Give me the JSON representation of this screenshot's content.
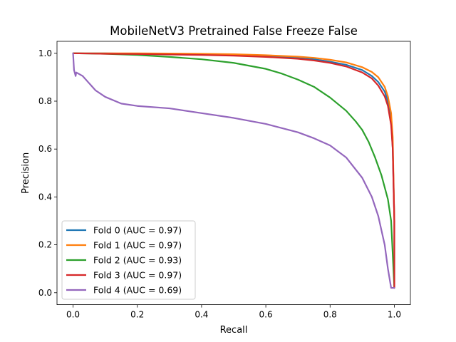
{
  "chart_data": {
    "type": "line",
    "title": "MobileNetV3 Pretrained False Freeze False",
    "xlabel": "Recall",
    "ylabel": "Precision",
    "xlim": [
      -0.05,
      1.05
    ],
    "ylim": [
      -0.05,
      1.05
    ],
    "xticks": [
      "0.0",
      "0.2",
      "0.4",
      "0.6",
      "0.8",
      "1.0"
    ],
    "yticks": [
      "0.0",
      "0.2",
      "0.4",
      "0.6",
      "0.8",
      "1.0"
    ],
    "grid": false,
    "legend_position": "lower-left",
    "series": [
      {
        "name": "Fold 0 (AUC = 0.97)",
        "color": "#1f77b4",
        "points": [
          [
            0.0,
            1.0
          ],
          [
            0.1,
            1.0
          ],
          [
            0.2,
            0.998
          ],
          [
            0.3,
            0.997
          ],
          [
            0.4,
            0.995
          ],
          [
            0.5,
            0.992
          ],
          [
            0.6,
            0.988
          ],
          [
            0.7,
            0.98
          ],
          [
            0.75,
            0.975
          ],
          [
            0.8,
            0.965
          ],
          [
            0.85,
            0.952
          ],
          [
            0.9,
            0.93
          ],
          [
            0.93,
            0.905
          ],
          [
            0.95,
            0.88
          ],
          [
            0.97,
            0.84
          ],
          [
            0.98,
            0.8
          ],
          [
            0.99,
            0.72
          ],
          [
            0.995,
            0.6
          ],
          [
            1.0,
            0.3
          ],
          [
            1.0,
            0.02
          ]
        ]
      },
      {
        "name": "Fold 1 (AUC = 0.97)",
        "color": "#ff7f0e",
        "points": [
          [
            0.0,
            1.0
          ],
          [
            0.1,
            1.0
          ],
          [
            0.2,
            1.0
          ],
          [
            0.3,
            0.999
          ],
          [
            0.4,
            0.998
          ],
          [
            0.5,
            0.996
          ],
          [
            0.6,
            0.992
          ],
          [
            0.7,
            0.986
          ],
          [
            0.75,
            0.981
          ],
          [
            0.8,
            0.973
          ],
          [
            0.85,
            0.962
          ],
          [
            0.9,
            0.942
          ],
          [
            0.93,
            0.922
          ],
          [
            0.95,
            0.9
          ],
          [
            0.97,
            0.86
          ],
          [
            0.98,
            0.82
          ],
          [
            0.99,
            0.75
          ],
          [
            0.995,
            0.65
          ],
          [
            1.0,
            0.3
          ],
          [
            1.0,
            0.02
          ]
        ]
      },
      {
        "name": "Fold 2 (AUC = 0.93)",
        "color": "#2ca02c",
        "points": [
          [
            0.0,
            1.0
          ],
          [
            0.1,
            0.998
          ],
          [
            0.2,
            0.993
          ],
          [
            0.3,
            0.985
          ],
          [
            0.4,
            0.975
          ],
          [
            0.5,
            0.96
          ],
          [
            0.6,
            0.935
          ],
          [
            0.65,
            0.915
          ],
          [
            0.7,
            0.89
          ],
          [
            0.75,
            0.86
          ],
          [
            0.8,
            0.815
          ],
          [
            0.85,
            0.76
          ],
          [
            0.88,
            0.715
          ],
          [
            0.9,
            0.68
          ],
          [
            0.92,
            0.63
          ],
          [
            0.94,
            0.565
          ],
          [
            0.96,
            0.49
          ],
          [
            0.98,
            0.39
          ],
          [
            0.99,
            0.3
          ],
          [
            1.0,
            0.02
          ]
        ]
      },
      {
        "name": "Fold 3 (AUC = 0.97)",
        "color": "#d62728",
        "points": [
          [
            0.0,
            1.0
          ],
          [
            0.1,
            0.998
          ],
          [
            0.2,
            0.997
          ],
          [
            0.3,
            0.995
          ],
          [
            0.4,
            0.993
          ],
          [
            0.5,
            0.99
          ],
          [
            0.6,
            0.985
          ],
          [
            0.7,
            0.977
          ],
          [
            0.75,
            0.97
          ],
          [
            0.8,
            0.96
          ],
          [
            0.85,
            0.945
          ],
          [
            0.9,
            0.92
          ],
          [
            0.93,
            0.895
          ],
          [
            0.95,
            0.865
          ],
          [
            0.97,
            0.82
          ],
          [
            0.98,
            0.78
          ],
          [
            0.99,
            0.7
          ],
          [
            0.995,
            0.6
          ],
          [
            1.0,
            0.3
          ],
          [
            1.0,
            0.02
          ]
        ]
      },
      {
        "name": "Fold 4 (AUC = 0.69)",
        "color": "#9467bd",
        "points": [
          [
            0.0,
            1.0
          ],
          [
            0.003,
            0.93
          ],
          [
            0.008,
            0.905
          ],
          [
            0.01,
            0.92
          ],
          [
            0.03,
            0.905
          ],
          [
            0.05,
            0.875
          ],
          [
            0.07,
            0.845
          ],
          [
            0.1,
            0.818
          ],
          [
            0.15,
            0.79
          ],
          [
            0.2,
            0.78
          ],
          [
            0.3,
            0.77
          ],
          [
            0.4,
            0.75
          ],
          [
            0.5,
            0.73
          ],
          [
            0.6,
            0.705
          ],
          [
            0.7,
            0.67
          ],
          [
            0.75,
            0.645
          ],
          [
            0.8,
            0.615
          ],
          [
            0.85,
            0.565
          ],
          [
            0.9,
            0.48
          ],
          [
            0.93,
            0.4
          ],
          [
            0.95,
            0.32
          ],
          [
            0.97,
            0.2
          ],
          [
            0.98,
            0.1
          ],
          [
            0.99,
            0.02
          ],
          [
            1.0,
            0.02
          ]
        ]
      }
    ]
  }
}
